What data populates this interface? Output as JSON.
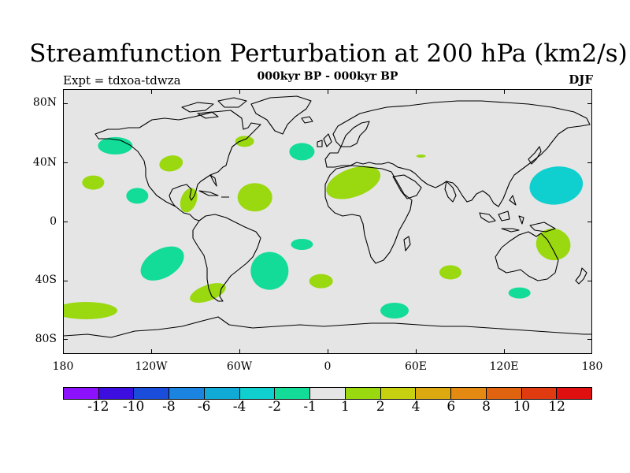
{
  "title": "Streamfunction Perturbation at 200 hPa (km2/s)",
  "subtitle": "000kyr BP - 000kyr BP",
  "experiment": "Expt = tdxoa-tdwza",
  "season": "DJF",
  "map": {
    "lat_labels": [
      "80N",
      "40N",
      "0",
      "40S",
      "80S"
    ],
    "lon_labels": [
      "180",
      "120W",
      "60W",
      "0",
      "60E",
      "120E",
      "180"
    ],
    "ocean_color": "#e5e5e5",
    "coastline_color": "#000000"
  },
  "colorbar": {
    "colors": [
      "#8b11ff",
      "#3c0fe0",
      "#1b4ddb",
      "#1b83e0",
      "#10aad6",
      "#10cfcf",
      "#12dc98",
      "#e5e5e5",
      "#9ad80f",
      "#c8d10f",
      "#dcaa10",
      "#e48a12",
      "#e0640f",
      "#e03a10",
      "#e00f10"
    ],
    "labels": [
      "-12",
      "-10",
      "-8",
      "-6",
      "-4",
      "-2",
      "-1",
      "1",
      "2",
      "4",
      "6",
      "8",
      "10",
      "12"
    ]
  },
  "chart_data": {
    "type": "heatmap",
    "title": "Streamfunction Perturbation at 200 hPa (km2/s)",
    "subtitle": "000kyr BP - 000kyr BP",
    "units": "km2/s",
    "levels": [
      -12,
      -10,
      -8,
      -6,
      -4,
      -2,
      -1,
      1,
      2,
      4,
      6,
      8,
      10,
      12
    ],
    "x_range": [
      -180,
      180
    ],
    "y_range": [
      -90,
      90
    ],
    "anomalies": [
      {
        "name": "north-pacific-negative",
        "lon": -145,
        "lat": 52,
        "value": -1.5
      },
      {
        "name": "hawaii-positive",
        "lon": -160,
        "lat": 27,
        "value": 1.5
      },
      {
        "name": "north-america-positive",
        "lon": -107,
        "lat": 40,
        "value": 1.5
      },
      {
        "name": "labrador-positive",
        "lon": -57,
        "lat": 55,
        "value": 1.5
      },
      {
        "name": "north-atlantic-negative",
        "lon": -18,
        "lat": 48,
        "value": -1.5
      },
      {
        "name": "east-pacific-negative",
        "lon": -130,
        "lat": 18,
        "value": -1.5
      },
      {
        "name": "central-america-positive",
        "lon": -95,
        "lat": 15,
        "value": 1.5
      },
      {
        "name": "tropical-atlantic-positive",
        "lon": -50,
        "lat": 17,
        "value": 1.5
      },
      {
        "name": "north-africa-positive",
        "lon": 17,
        "lat": 27,
        "value": 1.5
      },
      {
        "name": "middle-east-positive",
        "lon": 63,
        "lat": 45,
        "value": 1.5
      },
      {
        "name": "northwest-pacific-negative",
        "lon": 155,
        "lat": 25,
        "value": -3
      },
      {
        "name": "south-pacific-negative",
        "lon": -113,
        "lat": -28,
        "value": -1.5
      },
      {
        "name": "south-america-negative",
        "lon": -40,
        "lat": -33,
        "value": -1.5
      },
      {
        "name": "south-atlantic-negative",
        "lon": -18,
        "lat": -15,
        "value": -1.5
      },
      {
        "name": "australia-positive",
        "lon": 153,
        "lat": -15,
        "value": 1.5
      },
      {
        "name": "south-pacific-positive",
        "lon": -82,
        "lat": -48,
        "value": 1.5
      },
      {
        "name": "southern-ocean-positive",
        "lon": -165,
        "lat": -60,
        "value": 1.5
      },
      {
        "name": "indian-ocean-negative",
        "lon": 45,
        "lat": -60,
        "value": -1.5
      },
      {
        "name": "south-africa-positive",
        "lon": -5,
        "lat": -40,
        "value": 1.5
      },
      {
        "name": "south-indian-positive",
        "lon": 83,
        "lat": -34,
        "value": 1.5
      },
      {
        "name": "tasman-negative",
        "lon": 130,
        "lat": -48,
        "value": -1.5
      }
    ]
  }
}
